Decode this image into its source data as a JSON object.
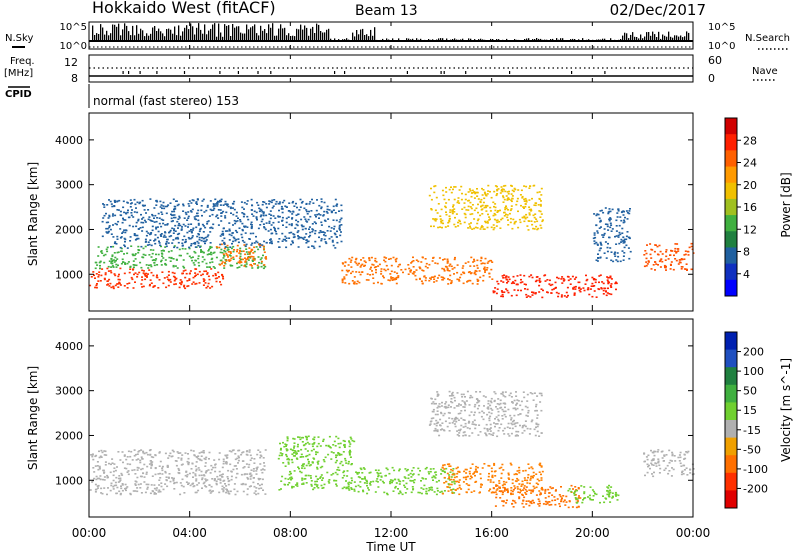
{
  "header": {
    "radar": "Hokkaido West (fitACF)",
    "beam": "Beam 13",
    "date": "02/Dec/2017"
  },
  "status": {
    "nsky_label": "N.Sky",
    "nsearch_label": "N.Search",
    "noise_ticks": [
      "10^5",
      "10^0"
    ],
    "freq_label": "Freq.",
    "freq_unit": "[MHz]",
    "freq_ticks": [
      "12",
      "8"
    ],
    "nave_label": "Nave",
    "nave_ticks": [
      "60",
      "0"
    ],
    "cpid_label": "CPID",
    "cpid_value": "normal (fast stereo) 153"
  },
  "chart_data": [
    {
      "type": "heatmap",
      "panel": "power",
      "ylabel": "Slant Range [km]",
      "xlabel": "Time UT",
      "x_ticks": [
        "00:00",
        "04:00",
        "08:00",
        "12:00",
        "16:00",
        "20:00",
        "00:00"
      ],
      "x_tick_hours": [
        0,
        4,
        8,
        12,
        16,
        20,
        24
      ],
      "y_ticks": [
        1000,
        2000,
        3000,
        4000
      ],
      "ylim": [
        180,
        4600
      ],
      "xlim": [
        0,
        24
      ],
      "colorbar": {
        "label": "Power [dB]",
        "ticks": [
          "28",
          "24",
          "20",
          "16",
          "12",
          "8",
          "4"
        ],
        "colors": [
          "#d00000",
          "#ff2000",
          "#ff6000",
          "#ff9a00",
          "#f0c000",
          "#a0c020",
          "#40b040",
          "#208040",
          "#2060a0",
          "#1030c0",
          "#0000ff"
        ]
      },
      "scatter_regions": [
        {
          "t0": 0.0,
          "t1": 5.3,
          "r0": 700,
          "r1": 1150,
          "color": "#ff3000"
        },
        {
          "t0": 0.2,
          "t1": 7.0,
          "r0": 1150,
          "r1": 1650,
          "color": "#40b040"
        },
        {
          "t0": 5.0,
          "t1": 7.0,
          "r0": 1200,
          "r1": 1700,
          "color": "#ff7000"
        },
        {
          "t0": 0.5,
          "t1": 10.0,
          "r0": 1600,
          "r1": 2700,
          "color": "#2060a0"
        },
        {
          "t0": 10.0,
          "t1": 16.0,
          "r0": 800,
          "r1": 1400,
          "color": "#ff7000"
        },
        {
          "t0": 13.5,
          "t1": 18.0,
          "r0": 2000,
          "r1": 3000,
          "color": "#f0c000"
        },
        {
          "t0": 16.0,
          "t1": 21.0,
          "r0": 500,
          "r1": 1000,
          "color": "#ff2000"
        },
        {
          "t0": 20.0,
          "t1": 21.5,
          "r0": 1300,
          "r1": 2500,
          "color": "#2060a0"
        },
        {
          "t0": 22.0,
          "t1": 24.0,
          "r0": 1100,
          "r1": 1700,
          "color": "#ff5000"
        }
      ]
    },
    {
      "type": "heatmap",
      "panel": "velocity",
      "ylabel": "Slant Range [km]",
      "xlabel": "Time UT",
      "x_ticks": [
        "00:00",
        "04:00",
        "08:00",
        "12:00",
        "16:00",
        "20:00",
        "00:00"
      ],
      "x_tick_hours": [
        0,
        4,
        8,
        12,
        16,
        20,
        24
      ],
      "y_ticks": [
        1000,
        2000,
        3000,
        4000
      ],
      "ylim": [
        180,
        4600
      ],
      "xlim": [
        0,
        24
      ],
      "colorbar": {
        "label": "Velocity [m s^-1]",
        "ticks": [
          "200",
          "100",
          "50",
          "15",
          "-15",
          "-50",
          "-100",
          "-200"
        ],
        "colors": [
          "#0020b0",
          "#2050c0",
          "#208040",
          "#40b040",
          "#70d030",
          "#b0b0b0",
          "#f0a000",
          "#ff7000",
          "#ff3000",
          "#e00000"
        ]
      },
      "scatter_regions": [
        {
          "t0": 0.0,
          "t1": 7.0,
          "r0": 700,
          "r1": 1700,
          "color": "#b0b0b0"
        },
        {
          "t0": 7.5,
          "t1": 10.5,
          "r0": 800,
          "r1": 2000,
          "color": "#70d030"
        },
        {
          "t0": 10.5,
          "t1": 14.5,
          "r0": 700,
          "r1": 1300,
          "color": "#70d030"
        },
        {
          "t0": 13.5,
          "t1": 18.0,
          "r0": 2000,
          "r1": 3000,
          "color": "#b0b0b0"
        },
        {
          "t0": 14.0,
          "t1": 18.0,
          "r0": 700,
          "r1": 1400,
          "color": "#ff8000"
        },
        {
          "t0": 16.0,
          "t1": 19.5,
          "r0": 400,
          "r1": 900,
          "color": "#ff7000"
        },
        {
          "t0": 19.0,
          "t1": 21.0,
          "r0": 500,
          "r1": 900,
          "color": "#70d030"
        },
        {
          "t0": 22.0,
          "t1": 24.0,
          "r0": 1100,
          "r1": 1700,
          "color": "#b0b0b0"
        }
      ]
    }
  ]
}
